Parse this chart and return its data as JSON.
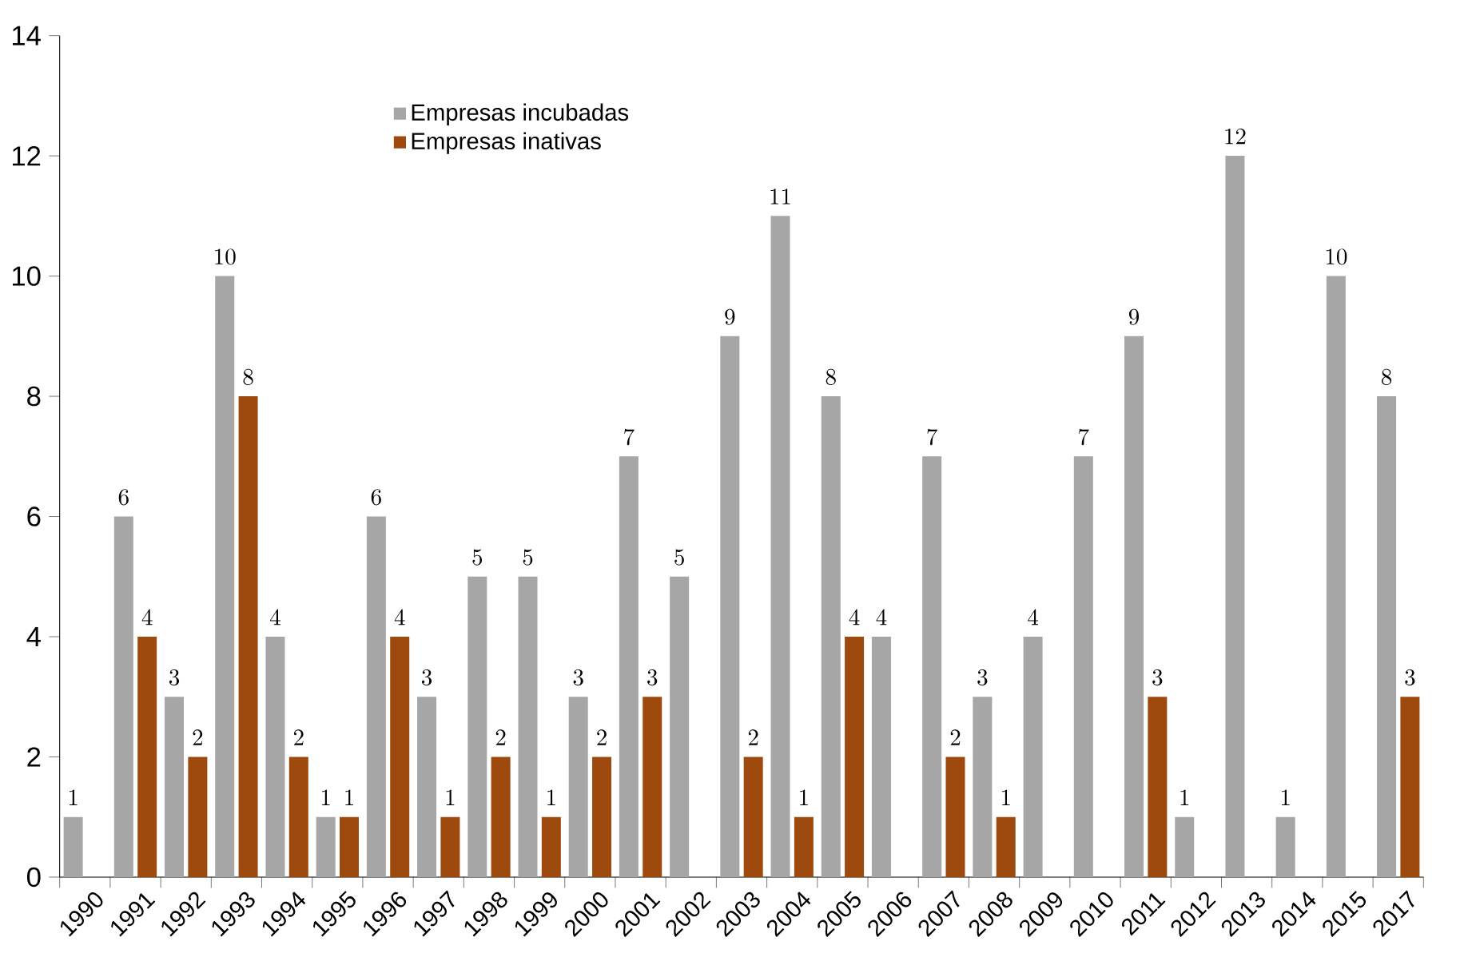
{
  "chart_data": {
    "type": "bar",
    "categories": [
      "1990",
      "1991",
      "1992",
      "1993",
      "1994",
      "1995",
      "1996",
      "1997",
      "1998",
      "1999",
      "2000",
      "2001",
      "2002",
      "2003",
      "2004",
      "2005",
      "2006",
      "2007",
      "2008",
      "2009",
      "2010",
      "2011",
      "2012",
      "2013",
      "2014",
      "2015",
      "2017"
    ],
    "series": [
      {
        "name": "Empresas incubadas",
        "color": "#a6a6a6",
        "values": [
          1,
          6,
          3,
          10,
          4,
          1,
          6,
          3,
          5,
          5,
          3,
          7,
          5,
          9,
          11,
          8,
          4,
          7,
          3,
          4,
          7,
          9,
          1,
          12,
          1,
          10,
          8
        ]
      },
      {
        "name": "Empresas inativas",
        "color": "#9e4a0e",
        "values": [
          null,
          4,
          2,
          8,
          2,
          1,
          4,
          1,
          2,
          1,
          2,
          3,
          null,
          2,
          1,
          4,
          null,
          2,
          1,
          null,
          null,
          3,
          null,
          null,
          null,
          null,
          3
        ]
      }
    ],
    "ylim": [
      0,
      14
    ],
    "yticks": [
      0,
      2,
      4,
      6,
      8,
      10,
      12,
      14
    ],
    "data_labels": true,
    "grid": false,
    "legend": "top left"
  }
}
